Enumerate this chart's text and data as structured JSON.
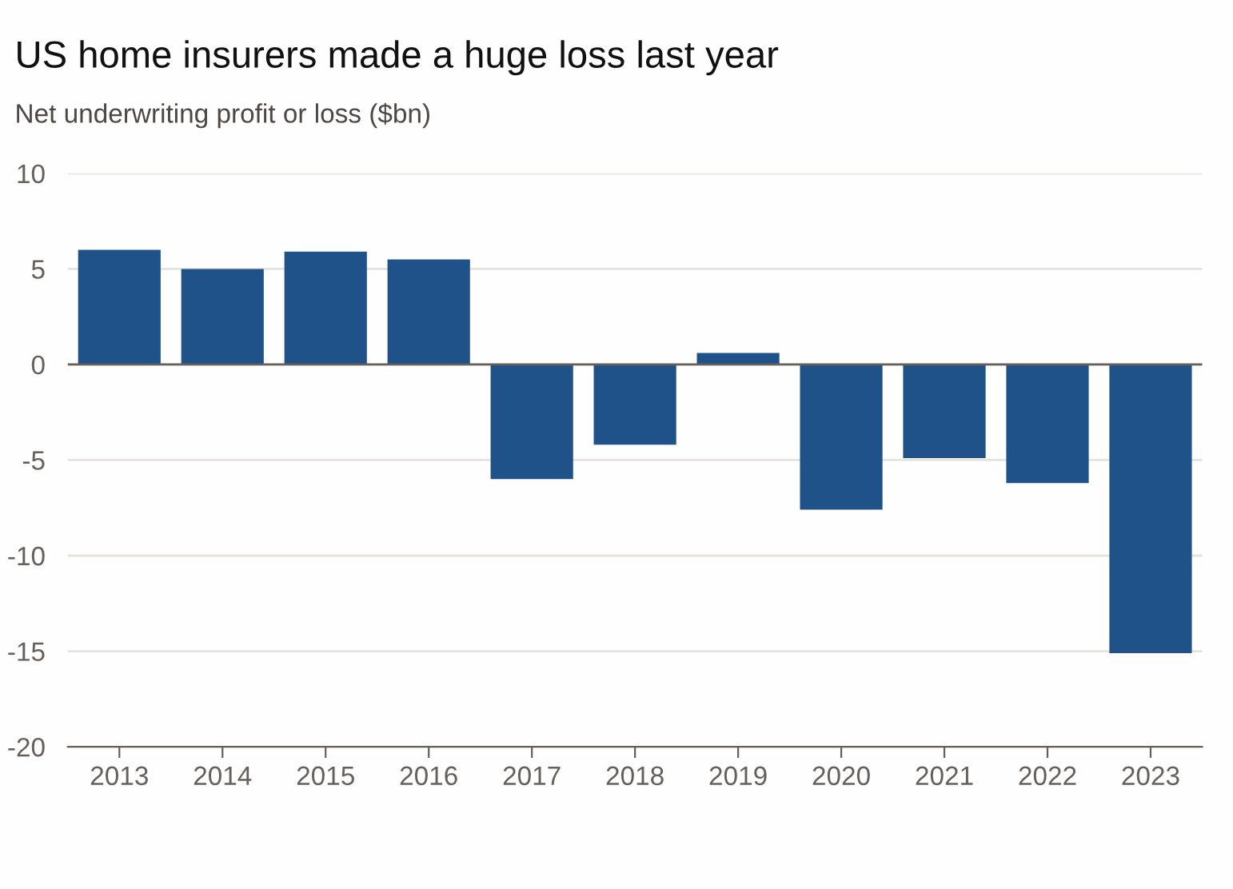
{
  "chart_data": {
    "type": "bar",
    "title": "US home insurers made a huge loss last year",
    "subtitle": "Net underwriting profit or loss ($bn)",
    "categories": [
      "2013",
      "2014",
      "2015",
      "2016",
      "2017",
      "2018",
      "2019",
      "2020",
      "2021",
      "2022",
      "2023"
    ],
    "values": [
      6.0,
      5.0,
      5.9,
      5.5,
      -6.0,
      -4.2,
      0.6,
      -7.6,
      -4.9,
      -6.2,
      -15.1
    ],
    "color": "#1f5289",
    "ylim": [
      -20,
      10
    ],
    "yticks": [
      -20,
      -15,
      -10,
      -5,
      0,
      5,
      10
    ],
    "grid": "y"
  }
}
